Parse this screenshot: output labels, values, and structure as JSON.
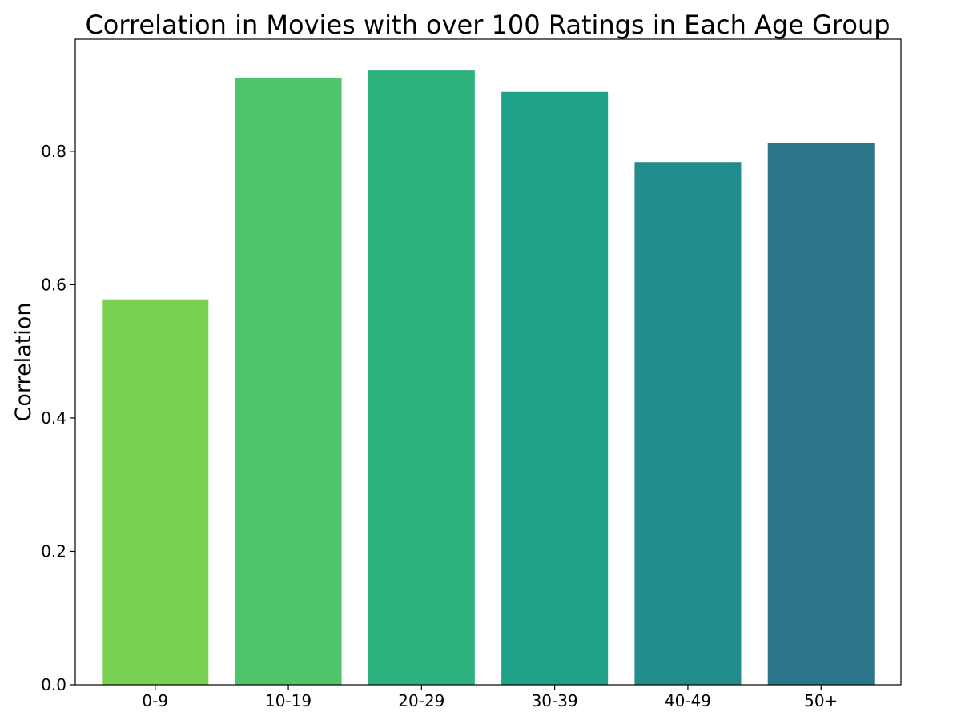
{
  "chart_data": {
    "type": "bar",
    "title": "Correlation in Movies with over 100 Ratings in Each Age Group",
    "xlabel": "",
    "ylabel": "Correlation",
    "categories": [
      "0-9",
      "10-19",
      "20-29",
      "30-39",
      "40-49",
      "50+"
    ],
    "values": [
      0.578,
      0.91,
      0.921,
      0.889,
      0.784,
      0.812
    ],
    "colors": [
      "#7ad151",
      "#4fc46a",
      "#2db27d",
      "#1fa187",
      "#228c8d",
      "#2c768c"
    ],
    "ylim": [
      0,
      0.968
    ],
    "yticks": [
      0.0,
      0.2,
      0.4,
      0.6,
      0.8
    ],
    "ytick_labels": [
      "0.0",
      "0.2",
      "0.4",
      "0.6",
      "0.8"
    ],
    "grid": false,
    "legend": "none"
  }
}
